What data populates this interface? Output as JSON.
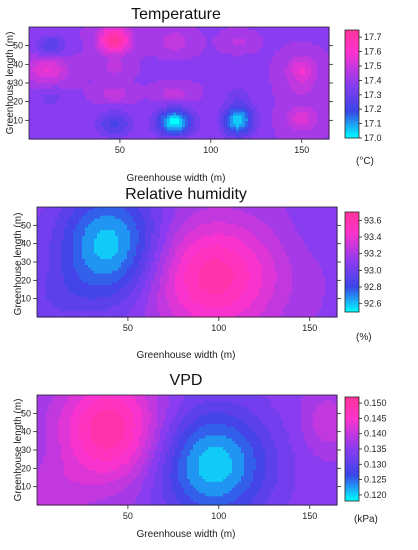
{
  "chart_data": [
    {
      "type": "heatmap",
      "title": "Temperature",
      "xlabel": "Greenhouse width (m)",
      "ylabel": "Greenhouse length (m)",
      "x_ticks": [
        50,
        100,
        150
      ],
      "y_ticks": [
        10,
        20,
        30,
        40,
        50
      ],
      "xlim": [
        0,
        165
      ],
      "ylim": [
        0,
        60
      ],
      "colorbar": {
        "unit": "(°C)",
        "ticks": [
          17.0,
          17.1,
          17.2,
          17.3,
          17.4,
          17.5,
          17.6,
          17.7
        ],
        "labels": [
          "17.0",
          "17.1",
          "17.2",
          "17.3",
          "17.4",
          "17.5",
          "17.6",
          "17.7"
        ],
        "range": [
          17.0,
          17.75
        ]
      },
      "field": {
        "base": 17.4,
        "features": [
          {
            "x": 12,
            "y": 50,
            "amp": -0.15,
            "sx": 6,
            "sy": 4
          },
          {
            "x": 10,
            "y": 37,
            "amp": 0.17,
            "sx": 8,
            "sy": 5
          },
          {
            "x": 12,
            "y": 22,
            "amp": -0.07,
            "sx": 6,
            "sy": 4
          },
          {
            "x": 47,
            "y": 53,
            "amp": 0.35,
            "sx": 6,
            "sy": 5
          },
          {
            "x": 47,
            "y": 38,
            "amp": 0.08,
            "sx": 5,
            "sy": 3
          },
          {
            "x": 47,
            "y": 24,
            "amp": 0.1,
            "sx": 6,
            "sy": 3
          },
          {
            "x": 47,
            "y": 8,
            "amp": -0.17,
            "sx": 7,
            "sy": 5
          },
          {
            "x": 80,
            "y": 52,
            "amp": 0.1,
            "sx": 6,
            "sy": 4
          },
          {
            "x": 80,
            "y": 38,
            "amp": -0.04,
            "sx": 5,
            "sy": 3
          },
          {
            "x": 80,
            "y": 24,
            "amp": 0.1,
            "sx": 6,
            "sy": 3
          },
          {
            "x": 80,
            "y": 9,
            "amp": -0.4,
            "sx": 7,
            "sy": 5
          },
          {
            "x": 115,
            "y": 52,
            "amp": 0.07,
            "sx": 5,
            "sy": 3
          },
          {
            "x": 115,
            "y": 38,
            "amp": -0.04,
            "sx": 5,
            "sy": 3
          },
          {
            "x": 115,
            "y": 24,
            "amp": -0.07,
            "sx": 5,
            "sy": 3
          },
          {
            "x": 115,
            "y": 10,
            "amp": -0.36,
            "sx": 6,
            "sy": 6
          },
          {
            "x": 150,
            "y": 37,
            "amp": 0.17,
            "sx": 6,
            "sy": 5
          },
          {
            "x": 150,
            "y": 27,
            "amp": 0.06,
            "sx": 6,
            "sy": 4
          },
          {
            "x": 150,
            "y": 11,
            "amp": 0.14,
            "sx": 6,
            "sy": 5
          }
        ]
      }
    },
    {
      "type": "heatmap",
      "title": "Relative humidity",
      "xlabel": "Greenhouse width (m)",
      "ylabel": "Greenhouse length (m)",
      "x_ticks": [
        50,
        100,
        150
      ],
      "y_ticks": [
        10,
        20,
        30,
        40,
        50
      ],
      "xlim": [
        0,
        165
      ],
      "ylim": [
        0,
        60
      ],
      "colorbar": {
        "unit": "(%)",
        "ticks": [
          92.6,
          92.8,
          93.0,
          93.2,
          93.4,
          93.6
        ],
        "labels": [
          "92.6",
          "92.8",
          "93.0",
          "93.2",
          "93.4",
          "93.6"
        ],
        "range": [
          92.5,
          93.7
        ]
      },
      "field": {
        "base": 93.12,
        "features": [
          {
            "x": 40,
            "y": 39,
            "amp": -0.55,
            "sx": 20,
            "sy": 22
          },
          {
            "x": 97,
            "y": 22,
            "amp": 0.5,
            "sx": 25,
            "sy": 22
          },
          {
            "x": 10,
            "y": 10,
            "amp": -0.1,
            "sx": 15,
            "sy": 12
          },
          {
            "x": 160,
            "y": 50,
            "amp": -0.05,
            "sx": 15,
            "sy": 12
          }
        ]
      }
    },
    {
      "type": "heatmap",
      "title": "VPD",
      "xlabel": "Greenhouse width (m)",
      "ylabel": "Greenhouse length (m)",
      "x_ticks": [
        50,
        100,
        150
      ],
      "y_ticks": [
        10,
        20,
        30,
        40,
        50
      ],
      "xlim": [
        0,
        165
      ],
      "ylim": [
        0,
        60
      ],
      "colorbar": {
        "unit": "(kPa)",
        "ticks": [
          0.12,
          0.125,
          0.13,
          0.135,
          0.14,
          0.145,
          0.15
        ],
        "labels": [
          "0.120",
          "0.125",
          "0.130",
          "0.135",
          "0.140",
          "0.145",
          "0.150"
        ],
        "range": [
          0.118,
          0.152
        ]
      },
      "field": {
        "base": 0.1355,
        "features": [
          {
            "x": 40,
            "y": 41,
            "amp": 0.015,
            "sx": 20,
            "sy": 21
          },
          {
            "x": 97,
            "y": 22,
            "amp": -0.0155,
            "sx": 22,
            "sy": 22
          },
          {
            "x": 160,
            "y": 45,
            "amp": 0.005,
            "sx": 10,
            "sy": 12
          },
          {
            "x": 5,
            "y": 5,
            "amp": 0.004,
            "sx": 15,
            "sy": 12
          }
        ]
      }
    }
  ],
  "colors": {
    "colormap": [
      "#00ffff",
      "#3a45e8",
      "#8a3cf0",
      "#ff33cc",
      "#ff3399"
    ]
  }
}
